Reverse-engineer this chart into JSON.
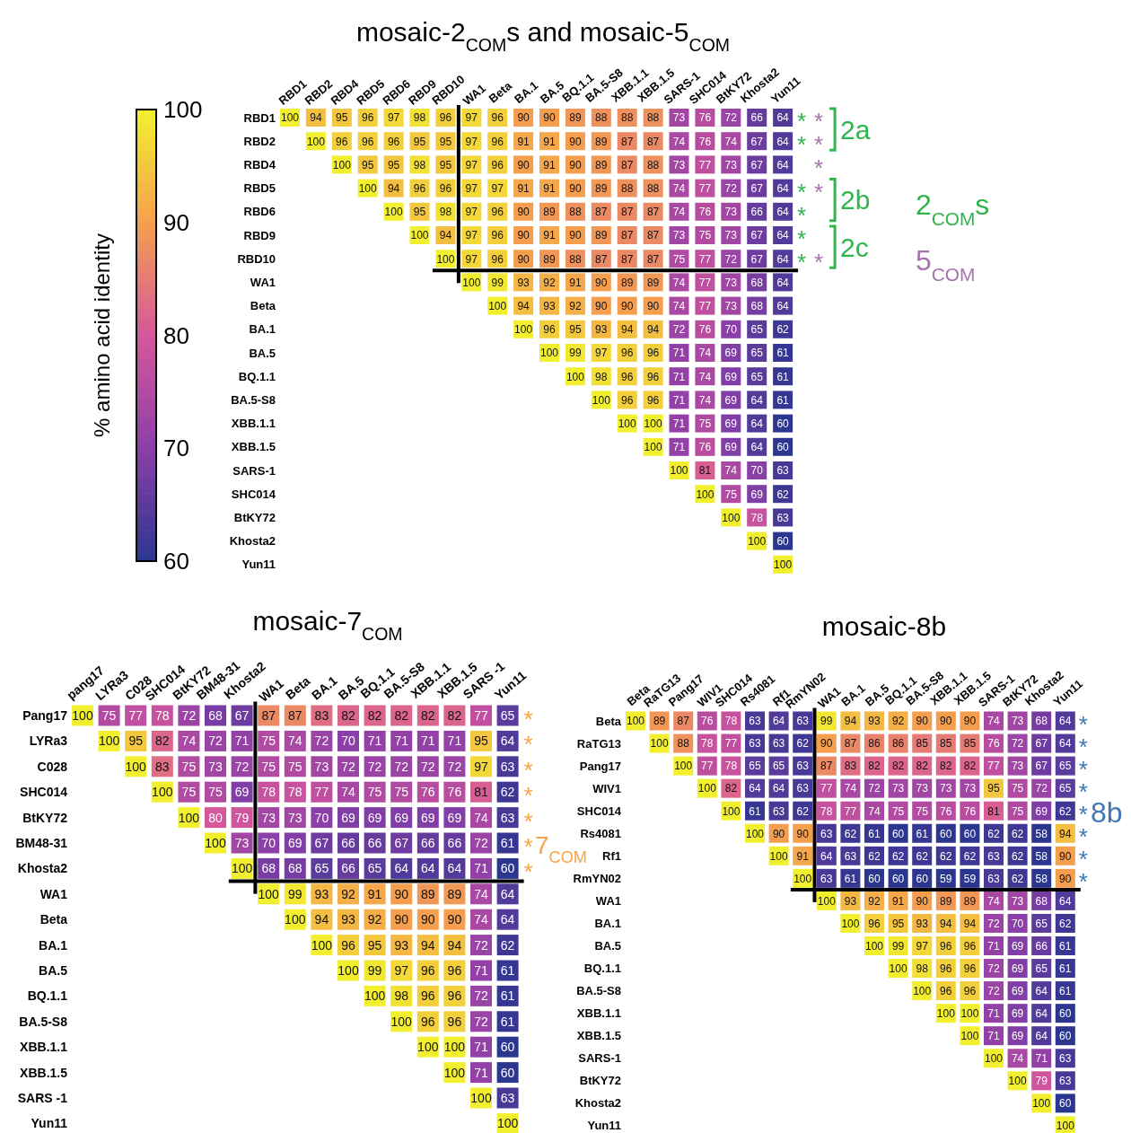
{
  "chart_data": [
    {
      "type": "heatmap",
      "title": "mosaic-2$_{COM}$s and mosaic-5$_{COM}$",
      "clabel": "% amino acid identity",
      "clim": [
        60,
        100
      ],
      "cticks": [
        60,
        70,
        80,
        90,
        100
      ],
      "data_labels": true,
      "categories": [
        "RBD1",
        "RBD2",
        "RBD4",
        "RBD5",
        "RBD6",
        "RBD9",
        "RBD10",
        "WA1",
        "Beta",
        "BA.1",
        "BA.5",
        "BQ.1.1",
        "BA.5-S8",
        "XBB.1.1",
        "XBB.1.5",
        "SARS-1",
        "SHC014",
        "BtKY72",
        "Khosta2",
        "Yun11"
      ],
      "y_categories": [
        "RBD1",
        "RBD2",
        "RBD4",
        "RBD5",
        "RBD6",
        "RBD9",
        "RBD10",
        "WA1",
        "Beta",
        "BA.1",
        "BA.5",
        "BQ.1.1",
        "BA.5-S8",
        "XBB.1.1",
        "XBB.1.5",
        "SARS-1",
        "SHC014",
        "BtKY72",
        "Khosta2",
        "Yun11"
      ],
      "cells": [
        [
          100,
          94,
          95,
          96,
          97,
          98,
          96,
          97,
          96,
          90,
          90,
          89,
          88,
          88,
          88,
          73,
          76,
          72,
          66,
          64
        ],
        [
          null,
          100,
          96,
          96,
          96,
          95,
          95,
          97,
          96,
          91,
          91,
          90,
          89,
          87,
          87,
          74,
          76,
          74,
          67,
          64
        ],
        [
          null,
          null,
          100,
          95,
          95,
          98,
          95,
          97,
          96,
          90,
          91,
          90,
          89,
          87,
          88,
          73,
          77,
          73,
          67,
          64
        ],
        [
          null,
          null,
          null,
          100,
          94,
          96,
          96,
          97,
          97,
          91,
          91,
          90,
          89,
          88,
          88,
          74,
          77,
          72,
          67,
          64
        ],
        [
          null,
          null,
          null,
          null,
          100,
          95,
          98,
          97,
          96,
          90,
          89,
          88,
          87,
          87,
          87,
          74,
          76,
          73,
          66,
          64
        ],
        [
          null,
          null,
          null,
          null,
          null,
          100,
          94,
          97,
          96,
          90,
          91,
          90,
          89,
          87,
          87,
          73,
          75,
          73,
          67,
          64
        ],
        [
          null,
          null,
          null,
          null,
          null,
          null,
          100,
          97,
          96,
          90,
          89,
          88,
          87,
          87,
          87,
          75,
          77,
          72,
          67,
          64
        ],
        [
          null,
          null,
          null,
          null,
          null,
          null,
          null,
          100,
          99,
          93,
          92,
          91,
          90,
          89,
          89,
          74,
          77,
          73,
          68,
          64
        ],
        [
          null,
          null,
          null,
          null,
          null,
          null,
          null,
          null,
          100,
          94,
          93,
          92,
          90,
          90,
          90,
          74,
          77,
          73,
          68,
          64
        ],
        [
          null,
          null,
          null,
          null,
          null,
          null,
          null,
          null,
          null,
          100,
          96,
          95,
          93,
          94,
          94,
          72,
          76,
          70,
          65,
          62
        ],
        [
          null,
          null,
          null,
          null,
          null,
          null,
          null,
          null,
          null,
          null,
          100,
          99,
          97,
          96,
          96,
          71,
          74,
          69,
          65,
          61
        ],
        [
          null,
          null,
          null,
          null,
          null,
          null,
          null,
          null,
          null,
          null,
          null,
          100,
          98,
          96,
          96,
          71,
          74,
          69,
          65,
          61
        ],
        [
          null,
          null,
          null,
          null,
          null,
          null,
          null,
          null,
          null,
          null,
          null,
          null,
          100,
          96,
          96,
          71,
          74,
          69,
          64,
          61
        ],
        [
          null,
          null,
          null,
          null,
          null,
          null,
          null,
          null,
          null,
          null,
          null,
          null,
          null,
          100,
          100,
          71,
          75,
          69,
          64,
          60
        ],
        [
          null,
          null,
          null,
          null,
          null,
          null,
          null,
          null,
          null,
          null,
          null,
          null,
          null,
          null,
          100,
          71,
          76,
          69,
          64,
          60
        ],
        [
          null,
          null,
          null,
          null,
          null,
          null,
          null,
          null,
          null,
          null,
          null,
          null,
          null,
          null,
          null,
          100,
          81,
          74,
          70,
          63
        ],
        [
          null,
          null,
          null,
          null,
          null,
          null,
          null,
          null,
          null,
          null,
          null,
          null,
          null,
          null,
          null,
          null,
          100,
          75,
          69,
          62
        ],
        [
          null,
          null,
          null,
          null,
          null,
          null,
          null,
          null,
          null,
          null,
          null,
          null,
          null,
          null,
          null,
          null,
          null,
          100,
          78,
          63
        ],
        [
          null,
          null,
          null,
          null,
          null,
          null,
          null,
          null,
          null,
          null,
          null,
          null,
          null,
          null,
          null,
          null,
          null,
          null,
          100,
          60
        ],
        [
          null,
          null,
          null,
          null,
          null,
          null,
          null,
          null,
          null,
          null,
          null,
          null,
          null,
          null,
          null,
          null,
          null,
          null,
          null,
          100
        ]
      ],
      "annotations": [
        "*",
        "*",
        "*",
        "*",
        "*",
        "*",
        "*",
        "*",
        "*",
        "*",
        "*",
        "2a",
        "2b",
        "2c",
        "2$_{COM}$s",
        "5$_{COM}$"
      ]
    },
    {
      "type": "heatmap",
      "title": "mosaic-7$_{COM}$",
      "data_labels": true,
      "categories": [
        "pang17",
        "LYRa3",
        "C028",
        "SHC014",
        "BtKY72",
        "BM48-31",
        "Khosta2",
        "WA1",
        "Beta",
        "BA.1",
        "BA.5",
        "BQ.1.1",
        "BA.5-S8",
        "XBB.1.1",
        "XBB.1.5",
        "SARS -1",
        "Yun11"
      ],
      "y_categories": [
        "Pang17",
        "LYRa3",
        "C028",
        "SHC014",
        "BtKY72",
        "BM48-31",
        "Khosta2",
        "WA1",
        "Beta",
        "BA.1",
        "BA.5",
        "BQ.1.1",
        "BA.5-S8",
        "XBB.1.1",
        "XBB.1.5",
        "SARS -1",
        "Yun11"
      ],
      "cells": [
        [
          100,
          75,
          77,
          78,
          72,
          68,
          67,
          87,
          87,
          83,
          82,
          82,
          82,
          82,
          82,
          77,
          65
        ],
        [
          null,
          100,
          95,
          82,
          74,
          72,
          71,
          75,
          74,
          72,
          70,
          71,
          71,
          71,
          71,
          95,
          64
        ],
        [
          null,
          null,
          100,
          83,
          75,
          73,
          72,
          75,
          75,
          73,
          72,
          72,
          72,
          72,
          72,
          97,
          63
        ],
        [
          null,
          null,
          null,
          100,
          75,
          75,
          69,
          78,
          78,
          77,
          74,
          75,
          75,
          76,
          76,
          81,
          62
        ],
        [
          null,
          null,
          null,
          null,
          100,
          80,
          79,
          73,
          73,
          70,
          69,
          69,
          69,
          69,
          69,
          74,
          63
        ],
        [
          null,
          null,
          null,
          null,
          null,
          100,
          73,
          70,
          69,
          67,
          66,
          66,
          67,
          66,
          66,
          72,
          61
        ],
        [
          null,
          null,
          null,
          null,
          null,
          null,
          100,
          68,
          68,
          65,
          66,
          65,
          64,
          64,
          64,
          71,
          60
        ],
        [
          null,
          null,
          null,
          null,
          null,
          null,
          null,
          100,
          99,
          93,
          92,
          91,
          90,
          89,
          89,
          74,
          64
        ],
        [
          null,
          null,
          null,
          null,
          null,
          null,
          null,
          null,
          100,
          94,
          93,
          92,
          90,
          90,
          90,
          74,
          64
        ],
        [
          null,
          null,
          null,
          null,
          null,
          null,
          null,
          null,
          null,
          100,
          96,
          95,
          93,
          94,
          94,
          72,
          62
        ],
        [
          null,
          null,
          null,
          null,
          null,
          null,
          null,
          null,
          null,
          null,
          100,
          99,
          97,
          96,
          96,
          71,
          61
        ],
        [
          null,
          null,
          null,
          null,
          null,
          null,
          null,
          null,
          null,
          null,
          null,
          100,
          98,
          96,
          96,
          72,
          61
        ],
        [
          null,
          null,
          null,
          null,
          null,
          null,
          null,
          null,
          null,
          null,
          null,
          null,
          100,
          96,
          96,
          72,
          61
        ],
        [
          null,
          null,
          null,
          null,
          null,
          null,
          null,
          null,
          null,
          null,
          null,
          null,
          null,
          100,
          100,
          71,
          60
        ],
        [
          null,
          null,
          null,
          null,
          null,
          null,
          null,
          null,
          null,
          null,
          null,
          null,
          null,
          null,
          100,
          71,
          60
        ],
        [
          null,
          null,
          null,
          null,
          null,
          null,
          null,
          null,
          null,
          null,
          null,
          null,
          null,
          null,
          null,
          100,
          63
        ],
        [
          null,
          null,
          null,
          null,
          null,
          null,
          null,
          null,
          null,
          null,
          null,
          null,
          null,
          null,
          null,
          null,
          100
        ]
      ],
      "annotations": [
        "*",
        "*",
        "*",
        "*",
        "*",
        "*",
        "*",
        "7$_{COM}$"
      ]
    },
    {
      "type": "heatmap",
      "title": "mosaic-8b",
      "data_labels": true,
      "categories": [
        "Beta",
        "RaTG13",
        "Pang17",
        "WIV1",
        "SHC014",
        "Rs4081",
        "Rf1",
        "RmYN02",
        "WA1",
        "BA.1",
        "BA.5",
        "BQ.1.1",
        "BA.5-S8",
        "XBB.1.1",
        "XBB.1.5",
        "SARS-1",
        "BtKY72",
        "Khosta2",
        "Yun11"
      ],
      "y_categories": [
        "Beta",
        "RaTG13",
        "Pang17",
        "WIV1",
        "SHC014",
        "Rs4081",
        "Rf1",
        "RmYN02",
        "WA1",
        "BA.1",
        "BA.5",
        "BQ.1.1",
        "BA.5-S8",
        "XBB.1.1",
        "XBB.1.5",
        "SARS-1",
        "BtKY72",
        "Khosta2",
        "Yun11"
      ],
      "cells": [
        [
          100,
          89,
          87,
          76,
          78,
          63,
          64,
          63,
          99,
          94,
          93,
          92,
          90,
          90,
          90,
          74,
          73,
          68,
          64
        ],
        [
          null,
          100,
          88,
          78,
          77,
          63,
          63,
          62,
          90,
          87,
          86,
          86,
          85,
          85,
          85,
          76,
          72,
          67,
          64
        ],
        [
          null,
          null,
          100,
          77,
          78,
          65,
          65,
          63,
          87,
          83,
          82,
          82,
          82,
          82,
          82,
          77,
          73,
          67,
          65
        ],
        [
          null,
          null,
          null,
          100,
          82,
          64,
          64,
          63,
          77,
          74,
          72,
          73,
          73,
          73,
          73,
          95,
          75,
          72,
          65
        ],
        [
          null,
          null,
          null,
          null,
          100,
          61,
          63,
          62,
          78,
          77,
          74,
          75,
          75,
          76,
          76,
          81,
          75,
          69,
          62
        ],
        [
          null,
          null,
          null,
          null,
          null,
          100,
          90,
          90,
          63,
          62,
          61,
          60,
          61,
          60,
          60,
          62,
          62,
          58,
          94
        ],
        [
          null,
          null,
          null,
          null,
          null,
          null,
          100,
          91,
          64,
          63,
          62,
          62,
          62,
          62,
          62,
          63,
          62,
          58,
          90
        ],
        [
          null,
          null,
          null,
          null,
          null,
          null,
          null,
          100,
          63,
          61,
          60,
          60,
          60,
          59,
          59,
          63,
          62,
          58,
          90
        ],
        [
          null,
          null,
          null,
          null,
          null,
          null,
          null,
          null,
          100,
          93,
          92,
          91,
          90,
          89,
          89,
          74,
          73,
          68,
          64
        ],
        [
          null,
          null,
          null,
          null,
          null,
          null,
          null,
          null,
          null,
          100,
          96,
          95,
          93,
          94,
          94,
          72,
          70,
          65,
          62
        ],
        [
          null,
          null,
          null,
          null,
          null,
          null,
          null,
          null,
          null,
          null,
          100,
          99,
          97,
          96,
          96,
          71,
          69,
          66,
          61
        ],
        [
          null,
          null,
          null,
          null,
          null,
          null,
          null,
          null,
          null,
          null,
          null,
          100,
          98,
          96,
          96,
          72,
          69,
          65,
          61
        ],
        [
          null,
          null,
          null,
          null,
          null,
          null,
          null,
          null,
          null,
          null,
          null,
          null,
          100,
          96,
          96,
          72,
          69,
          64,
          61
        ],
        [
          null,
          null,
          null,
          null,
          null,
          null,
          null,
          null,
          null,
          null,
          null,
          null,
          null,
          100,
          100,
          71,
          69,
          64,
          60
        ],
        [
          null,
          null,
          null,
          null,
          null,
          null,
          null,
          null,
          null,
          null,
          null,
          null,
          null,
          null,
          100,
          71,
          69,
          64,
          60
        ],
        [
          null,
          null,
          null,
          null,
          null,
          null,
          null,
          null,
          null,
          null,
          null,
          null,
          null,
          null,
          null,
          100,
          74,
          71,
          63
        ],
        [
          null,
          null,
          null,
          null,
          null,
          null,
          null,
          null,
          null,
          null,
          null,
          null,
          null,
          null,
          null,
          null,
          100,
          79,
          63
        ],
        [
          null,
          null,
          null,
          null,
          null,
          null,
          null,
          null,
          null,
          null,
          null,
          null,
          null,
          null,
          null,
          null,
          null,
          100,
          60
        ],
        [
          null,
          null,
          null,
          null,
          null,
          null,
          null,
          null,
          null,
          null,
          null,
          null,
          null,
          null,
          null,
          null,
          null,
          null,
          100
        ]
      ],
      "annotations": [
        "*",
        "*",
        "*",
        "*",
        "*",
        "*",
        "*",
        "*",
        "8b"
      ]
    }
  ]
}
